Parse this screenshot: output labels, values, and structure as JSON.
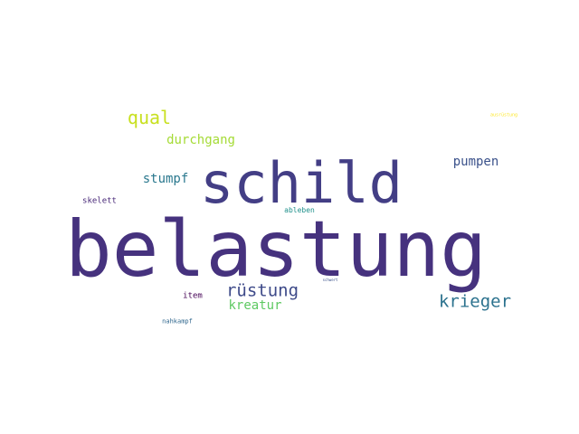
{
  "words": [
    {
      "key": "belastung",
      "text": "belastung",
      "color": "#46327e"
    },
    {
      "key": "schild",
      "text": "schild",
      "color": "#433e85"
    },
    {
      "key": "qual",
      "text": "qual",
      "color": "#c8e020"
    },
    {
      "key": "durchgang",
      "text": "durchgang",
      "color": "#a5db36"
    },
    {
      "key": "stumpf",
      "text": "stumpf",
      "color": "#2a788e"
    },
    {
      "key": "pumpen",
      "text": "pumpen",
      "color": "#3b528b"
    },
    {
      "key": "rustung",
      "text": "rüstung",
      "color": "#3e4a89"
    },
    {
      "key": "krieger",
      "text": "krieger",
      "color": "#2c728e"
    },
    {
      "key": "kreatur",
      "text": "kreatur",
      "color": "#5ec962"
    },
    {
      "key": "skelett",
      "text": "skelett",
      "color": "#482878"
    },
    {
      "key": "ableben",
      "text": "ableben",
      "color": "#21918c"
    },
    {
      "key": "item",
      "text": "item",
      "color": "#440154"
    },
    {
      "key": "nahkampf",
      "text": "nahkampf",
      "color": "#31688e"
    },
    {
      "key": "schwert",
      "text": "schwert",
      "color": "#3b528b"
    },
    {
      "key": "ausrustung",
      "text": "ausrüstung",
      "color": "#fde725"
    }
  ]
}
